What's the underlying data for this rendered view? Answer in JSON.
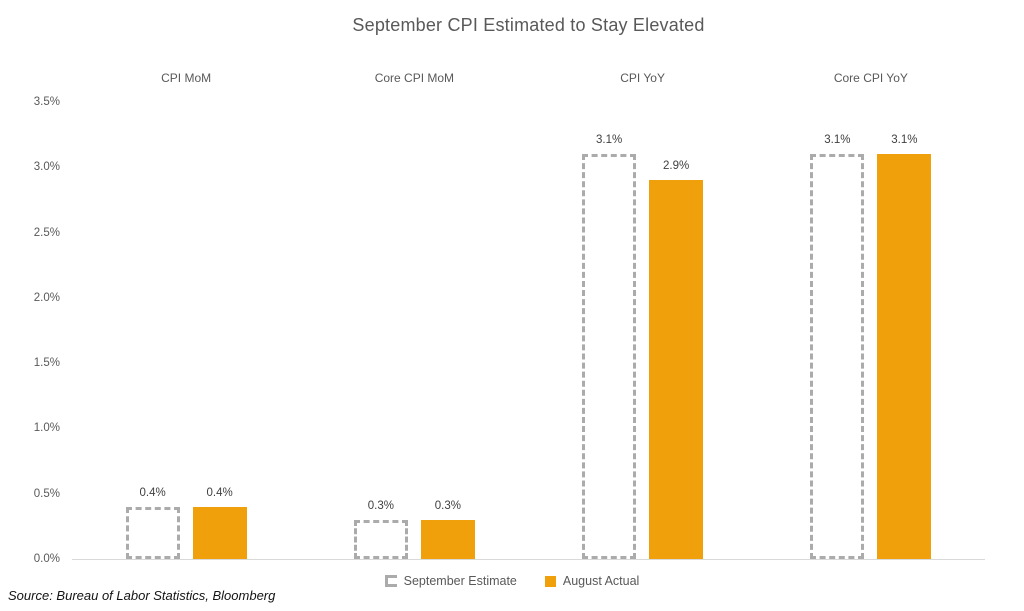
{
  "title": "September CPI Estimated to Stay Elevated",
  "source_note": "Source: Bureau of Labor Statistics, Bloomberg",
  "legend": {
    "items": [
      {
        "label": "September Estimate",
        "style": "dashed-outline"
      },
      {
        "label": "August Actual",
        "style": "solid"
      }
    ]
  },
  "colors": {
    "actual_fill": "#F0A00A",
    "estimate_stroke": "#ABABAB",
    "axis_line": "#D9D9D9",
    "title_text": "#595959",
    "tick_text": "#595959",
    "value_text": "#404040"
  },
  "chart_data": {
    "type": "bar",
    "title": "September CPI Estimated to Stay Elevated",
    "categories": [
      "CPI MoM",
      "Core CPI MoM",
      "CPI YoY",
      "Core CPI YoY"
    ],
    "series": [
      {
        "name": "September Estimate",
        "style": "dashed-outline",
        "values": [
          0.4,
          0.3,
          3.1,
          3.1
        ],
        "labels": [
          "0.4%",
          "0.3%",
          "3.1%",
          "3.1%"
        ]
      },
      {
        "name": "August Actual",
        "style": "solid",
        "values": [
          0.4,
          0.3,
          2.9,
          3.1
        ],
        "labels": [
          "0.4%",
          "0.3%",
          "2.9%",
          "3.1%"
        ]
      }
    ],
    "xlabel": "",
    "ylabel": "",
    "ylim": [
      0,
      3.5
    ],
    "ytick_labels": [
      "0.0%",
      "0.5%",
      "1.0%",
      "1.5%",
      "2.0%",
      "2.5%",
      "3.0%",
      "3.5%"
    ],
    "grid": false,
    "legend_position": "bottom",
    "data_labels_shown": true
  }
}
